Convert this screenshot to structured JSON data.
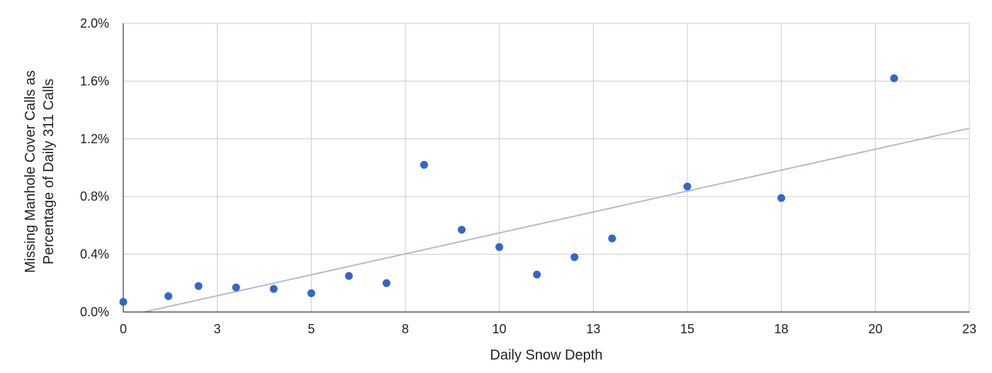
{
  "chart_data": {
    "type": "scatter",
    "title": "",
    "xlabel": "Daily Snow Depth",
    "ylabel_lines": [
      "Missing Manhole Cover Calls as",
      "Percentage of Daily 311 Calls"
    ],
    "xlim": [
      0,
      22.5
    ],
    "ylim": [
      0,
      0.02
    ],
    "x_ticks": [
      0,
      2.5,
      5,
      7.5,
      10,
      12.5,
      15,
      17.5,
      20,
      22.5
    ],
    "x_tick_labels": [
      "0",
      "3",
      "5",
      "8",
      "10",
      "13",
      "15",
      "18",
      "20",
      "23"
    ],
    "y_ticks": [
      0,
      0.004,
      0.008,
      0.012,
      0.016,
      0.02
    ],
    "y_tick_labels": [
      "0.0%",
      "0.4%",
      "0.8%",
      "1.2%",
      "1.6%",
      "2.0%"
    ],
    "grid": true,
    "series": [
      {
        "color": "#3366cc",
        "points": [
          {
            "x": 0,
            "y": 0.0007
          },
          {
            "x": 1.2,
            "y": 0.0011
          },
          {
            "x": 2,
            "y": 0.0018
          },
          {
            "x": 3,
            "y": 0.0017
          },
          {
            "x": 4,
            "y": 0.0016
          },
          {
            "x": 5,
            "y": 0.0013
          },
          {
            "x": 6,
            "y": 0.0025
          },
          {
            "x": 7,
            "y": 0.002
          },
          {
            "x": 8,
            "y": 0.0102
          },
          {
            "x": 9,
            "y": 0.0057
          },
          {
            "x": 10,
            "y": 0.0045
          },
          {
            "x": 11,
            "y": 0.0026
          },
          {
            "x": 12,
            "y": 0.0038
          },
          {
            "x": 13,
            "y": 0.0051
          },
          {
            "x": 15,
            "y": 0.0087
          },
          {
            "x": 17.5,
            "y": 0.0079
          },
          {
            "x": 20.5,
            "y": 0.0162
          }
        ]
      }
    ],
    "trendline": {
      "type": "linear",
      "color": "#b7b7d1",
      "x_range": [
        0,
        22.5
      ],
      "slope": 0.00058,
      "intercept": -0.00032
    }
  }
}
